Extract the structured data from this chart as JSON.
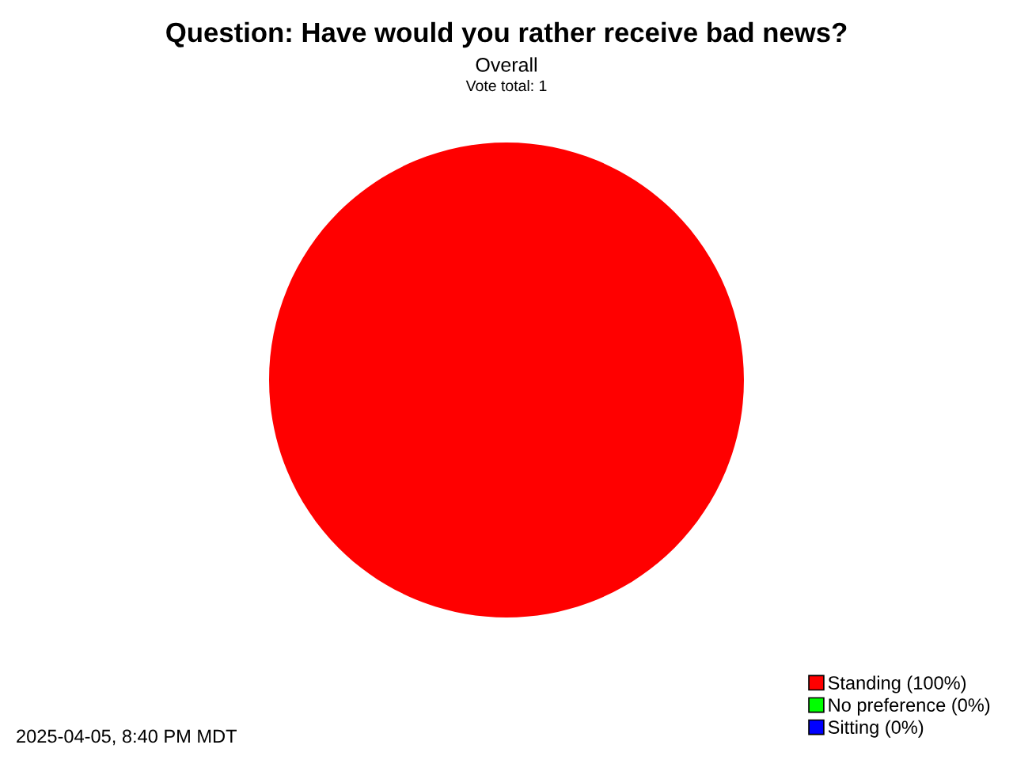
{
  "chart_data": {
    "type": "pie",
    "title": "Question: Have would you rather receive bad news?",
    "subtitle": "Overall",
    "annotations": [
      "Vote total: 1",
      "2025-04-05, 8:40 PM MDT"
    ],
    "categories": [
      "Standing (100%)",
      "No preference (0%)",
      "Sitting (0%)"
    ],
    "values": [
      100,
      0,
      0
    ],
    "colors": [
      "#ff0000",
      "#00ff00",
      "#0000ff"
    ],
    "legend": "bottom right"
  }
}
